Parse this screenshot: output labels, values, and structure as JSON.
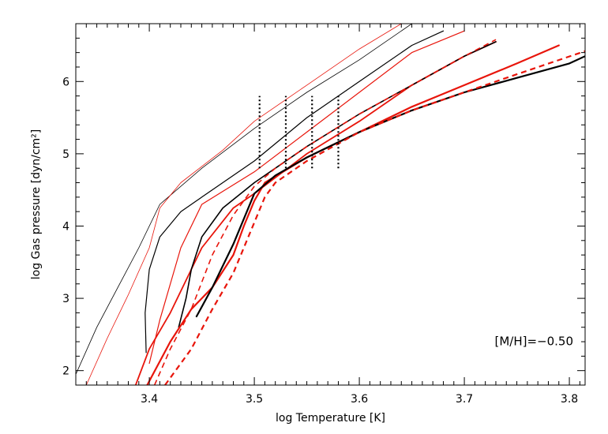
{
  "chart_data": {
    "type": "line",
    "xlabel": "log Temperature [K]",
    "ylabel": "log Gas pressure [dyn/cm²]",
    "xlim": [
      3.33,
      3.815
    ],
    "ylim": [
      1.8,
      6.8
    ],
    "xticks": [
      3.4,
      3.5,
      3.6,
      3.7,
      3.8
    ],
    "xtick_labels": [
      "3.4",
      "3.5",
      "3.6",
      "3.7",
      "3.8"
    ],
    "yticks": [
      2,
      3,
      4,
      5,
      6
    ],
    "ytick_labels": [
      "2",
      "3",
      "4",
      "5",
      "6"
    ],
    "annotation": "[M/H]=−0.50",
    "grid": false,
    "colors": {
      "black": "#000000",
      "red": "#e8150b"
    },
    "series": [
      {
        "color": "black",
        "style": "solid",
        "width": 0.8,
        "x": [
          3.33,
          3.35,
          3.37,
          3.39,
          3.41,
          3.45,
          3.5,
          3.55,
          3.6,
          3.65
        ],
        "y": [
          1.95,
          2.6,
          3.15,
          3.7,
          4.3,
          4.8,
          5.35,
          5.85,
          6.3,
          6.8
        ]
      },
      {
        "color": "red",
        "style": "solid",
        "width": 0.8,
        "x": [
          3.34,
          3.36,
          3.38,
          3.4,
          3.41,
          3.43,
          3.47,
          3.5,
          3.55,
          3.6,
          3.64
        ],
        "y": [
          1.8,
          2.45,
          3.05,
          3.7,
          4.25,
          4.6,
          5.05,
          5.45,
          5.95,
          6.45,
          6.8
        ]
      },
      {
        "color": "black",
        "style": "solid",
        "width": 1.2,
        "x": [
          3.397,
          3.396,
          3.4,
          3.41,
          3.43,
          3.45,
          3.5,
          3.55,
          3.6,
          3.65,
          3.68
        ],
        "y": [
          2.25,
          2.8,
          3.4,
          3.85,
          4.2,
          4.4,
          4.9,
          5.5,
          6.0,
          6.5,
          6.7
        ]
      },
      {
        "color": "red",
        "style": "solid",
        "width": 1.2,
        "x": [
          3.4,
          3.41,
          3.43,
          3.45,
          3.5,
          3.55,
          3.6,
          3.65,
          3.7
        ],
        "y": [
          2.1,
          2.7,
          3.7,
          4.3,
          4.75,
          5.3,
          5.85,
          6.4,
          6.7
        ]
      },
      {
        "color": "red",
        "style": "solid",
        "width": 1.8,
        "x": [
          3.387,
          3.4,
          3.42,
          3.44,
          3.45,
          3.48,
          3.5,
          3.55,
          3.6,
          3.65,
          3.7,
          3.73
        ],
        "y": [
          1.8,
          2.3,
          2.8,
          3.4,
          3.7,
          4.25,
          4.45,
          5.0,
          5.45,
          5.95,
          6.35,
          6.55
        ]
      },
      {
        "color": "black",
        "style": "solid",
        "width": 1.6,
        "x": [
          3.428,
          3.435,
          3.44,
          3.45,
          3.47,
          3.5,
          3.52,
          3.55,
          3.6,
          3.65,
          3.7,
          3.73
        ],
        "y": [
          2.6,
          3.0,
          3.4,
          3.85,
          4.25,
          4.6,
          4.8,
          5.1,
          5.55,
          5.95,
          6.35,
          6.55
        ]
      },
      {
        "color": "red",
        "style": "dashed",
        "width": 1.6,
        "x": [
          3.405,
          3.42,
          3.44,
          3.46,
          3.48,
          3.5,
          3.52,
          3.55,
          3.6,
          3.65,
          3.7,
          3.73
        ],
        "y": [
          1.8,
          2.3,
          2.85,
          3.6,
          4.15,
          4.55,
          4.8,
          5.1,
          5.55,
          5.95,
          6.35,
          6.58
        ]
      },
      {
        "color": "red",
        "style": "solid",
        "width": 2.2,
        "x": [
          3.398,
          3.42,
          3.44,
          3.46,
          3.48,
          3.49,
          3.5,
          3.51,
          3.55,
          3.6,
          3.65,
          3.7,
          3.75,
          3.79
        ],
        "y": [
          1.8,
          2.4,
          2.85,
          3.15,
          3.6,
          4.0,
          4.35,
          4.6,
          4.95,
          5.3,
          5.65,
          5.95,
          6.25,
          6.5
        ]
      },
      {
        "color": "black",
        "style": "solid",
        "width": 2.2,
        "x": [
          3.445,
          3.46,
          3.48,
          3.5,
          3.52,
          3.55,
          3.6,
          3.65,
          3.7,
          3.75,
          3.8,
          3.815
        ],
        "y": [
          2.75,
          3.15,
          3.75,
          4.45,
          4.7,
          4.95,
          5.3,
          5.6,
          5.85,
          6.05,
          6.25,
          6.35
        ]
      },
      {
        "color": "red",
        "style": "dashed",
        "width": 2.2,
        "x": [
          3.415,
          3.44,
          3.46,
          3.48,
          3.5,
          3.51,
          3.52,
          3.55,
          3.6,
          3.65,
          3.7,
          3.75,
          3.815
        ],
        "y": [
          1.8,
          2.3,
          2.85,
          3.35,
          4.05,
          4.4,
          4.6,
          4.9,
          5.3,
          5.6,
          5.85,
          6.1,
          6.42
        ]
      }
    ],
    "markers": [
      {
        "x": 3.505,
        "y_range": [
          4.8,
          5.8
        ]
      },
      {
        "x": 3.53,
        "y_range": [
          4.8,
          5.8
        ]
      },
      {
        "x": 3.555,
        "y_range": [
          4.8,
          5.8
        ]
      },
      {
        "x": 3.58,
        "y_range": [
          4.8,
          5.8
        ]
      }
    ]
  }
}
